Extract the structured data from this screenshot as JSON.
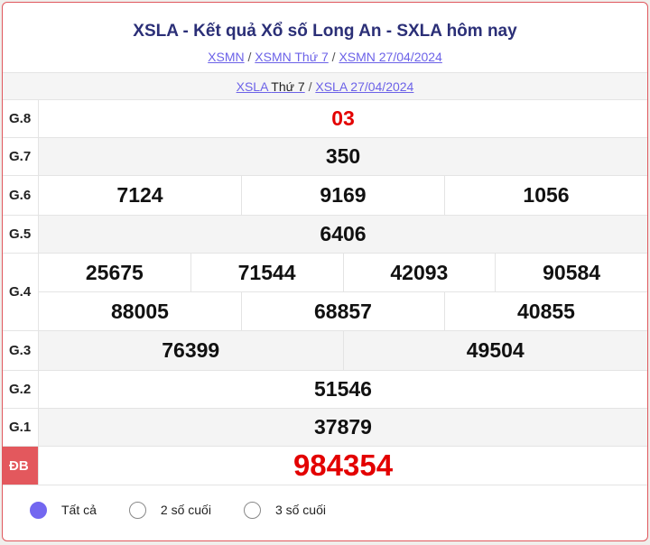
{
  "header": {
    "title": "XSLA - Kết quả Xổ số Long An - SXLA hôm nay",
    "breadcrumbs": [
      "XSMN",
      "XSMN Thứ 7",
      "XSMN 27/04/2024"
    ],
    "separator": "/"
  },
  "subnav": {
    "link1_prefix": "XSLA",
    "link1_suffix": "Thứ 7",
    "link2": "XSLA 27/04/2024"
  },
  "prizes": [
    {
      "label": "G.8",
      "rows": [
        [
          "03"
        ]
      ]
    },
    {
      "label": "G.7",
      "rows": [
        [
          "350"
        ]
      ]
    },
    {
      "label": "G.6",
      "rows": [
        [
          "7124",
          "9169",
          "1056"
        ]
      ]
    },
    {
      "label": "G.5",
      "rows": [
        [
          "6406"
        ]
      ]
    },
    {
      "label": "G.4",
      "rows": [
        [
          "25675",
          "71544",
          "42093",
          "90584"
        ],
        [
          "88005",
          "68857",
          "40855"
        ]
      ]
    },
    {
      "label": "G.3",
      "rows": [
        [
          "76399",
          "49504"
        ]
      ]
    },
    {
      "label": "G.2",
      "rows": [
        [
          "51546"
        ]
      ]
    },
    {
      "label": "G.1",
      "rows": [
        [
          "37879"
        ]
      ]
    },
    {
      "label": "ĐB",
      "rows": [
        [
          "984354"
        ]
      ]
    }
  ],
  "filters": {
    "options": [
      "Tất cả",
      "2 số cuối",
      "3 số cuối"
    ],
    "selected": "Tất cả"
  },
  "colors": {
    "accent": "#7367f0",
    "special": "#e30000",
    "title": "#2b2f77",
    "border": "#e0575d"
  }
}
